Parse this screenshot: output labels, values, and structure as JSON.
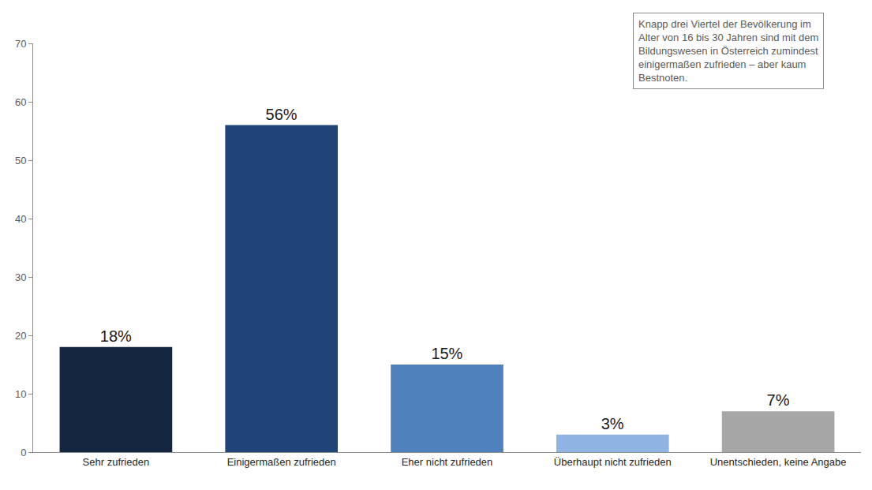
{
  "chart_data": {
    "type": "bar",
    "categories": [
      "Sehr zufrieden",
      "Einigermaßen zufrieden",
      "Eher nicht zufrieden",
      "Überhaupt nicht zufrieden",
      "Unentschieden, keine Angabe"
    ],
    "values": [
      18,
      56,
      15,
      3,
      7
    ],
    "value_labels": [
      "18%",
      "56%",
      "15%",
      "3%",
      "7%"
    ],
    "colors": [
      "#14253f",
      "#1f4477",
      "#4f81bd",
      "#8eb4e3",
      "#a6a6a6"
    ],
    "ylim": [
      0,
      70
    ],
    "yticks": [
      0,
      10,
      20,
      30,
      40,
      50,
      60,
      70
    ],
    "grid": false,
    "data_labels": true,
    "annotations": [
      "Knapp drei Viertel der Bevölkerung im Alter von 16 bis 30 Jahren sind mit dem Bildungswesen in Österreich zumindest einigermaßen zufrieden – aber kaum Bestnoten."
    ]
  }
}
